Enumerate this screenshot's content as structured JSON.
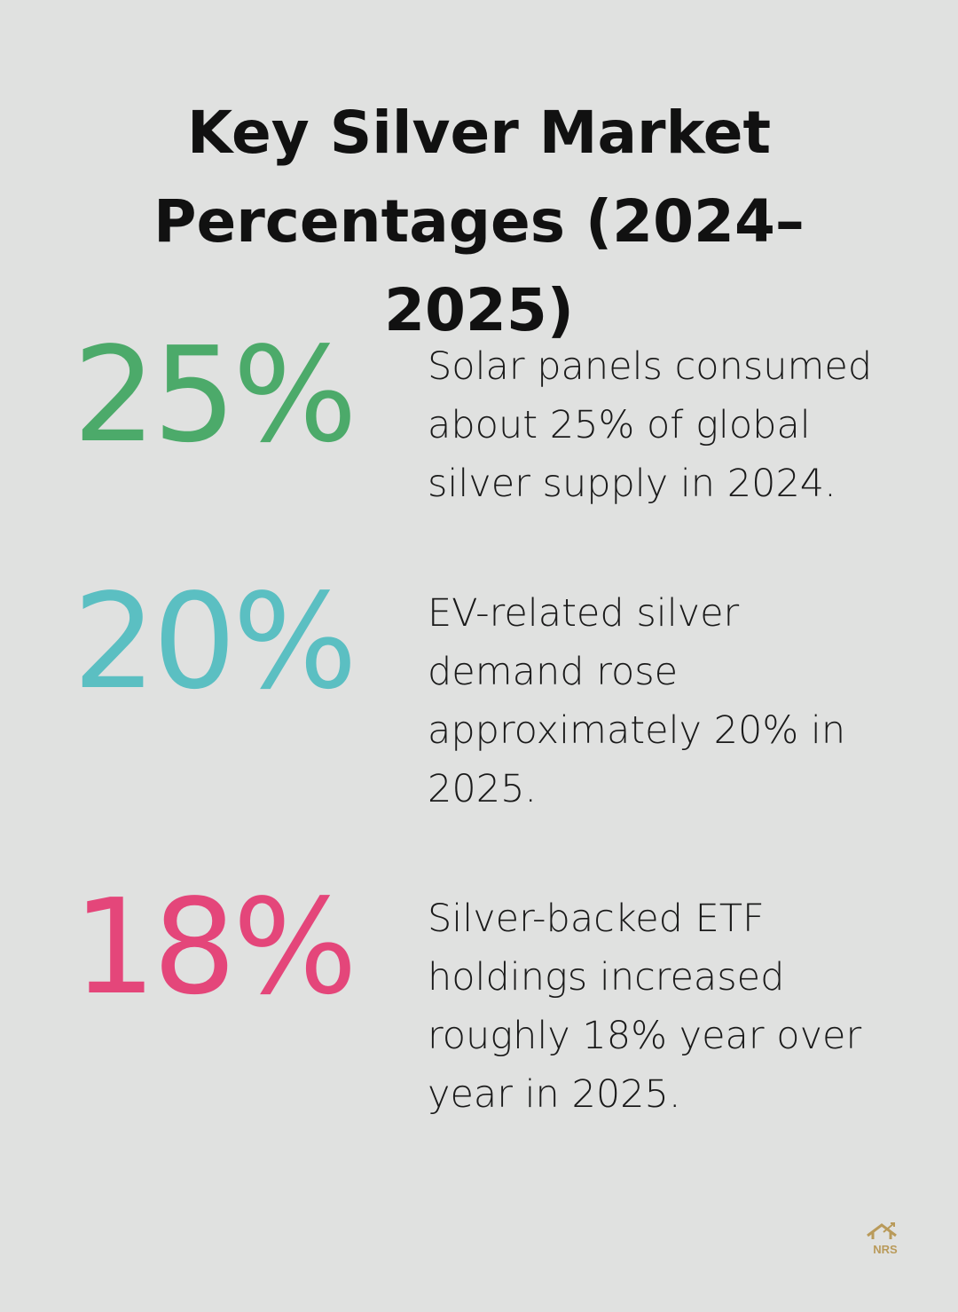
{
  "header": {
    "title": "Key Silver Market Percentages (2024–2025)"
  },
  "stats": [
    {
      "value": "25%",
      "color": "#4caa6a",
      "text": "Solar panels consumed about 25% of global silver supply in 2024."
    },
    {
      "value": "20%",
      "color": "#5bbfc2",
      "text": "EV-related silver demand rose approximately 20% in 2025."
    },
    {
      "value": "18%",
      "color": "#e4467a",
      "text": "Silver-backed ETF holdings increased roughly 18% year over year in 2025."
    }
  ],
  "logo": {
    "text": "NRS"
  }
}
